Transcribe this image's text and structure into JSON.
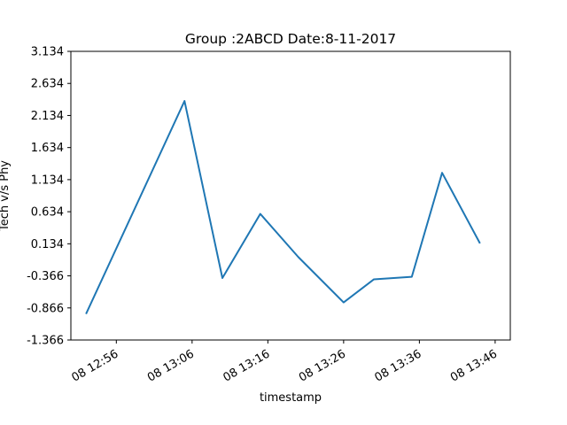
{
  "chart_data": {
    "type": "line",
    "title": "Group :2ABCD Date:8-11-2017",
    "xlabel": "timestamp",
    "ylabel": "Tech v/s Phy",
    "ylim": [
      -1.366,
      3.134
    ],
    "yticks": [
      "-1.366",
      "-0.866",
      "-0.366",
      "0.134",
      "0.634",
      "1.134",
      "1.634",
      "2.134",
      "2.634",
      "3.134"
    ],
    "xticks": [
      "08 12:56",
      "08 13:06",
      "08 13:16",
      "08 13:26",
      "08 13:36",
      "08 13:46"
    ],
    "xlim": [
      "08 12:50",
      "08 13:48"
    ],
    "grid": false,
    "series": [
      {
        "color": "#1f77b4",
        "x": [
          "08 12:52",
          "08 13:05",
          "08 13:10",
          "08 13:15",
          "08 13:20",
          "08 13:26",
          "08 13:30",
          "08 13:35",
          "08 13:39",
          "08 13:44"
        ],
        "y": [
          -0.96,
          2.36,
          -0.4,
          0.6,
          -0.07,
          -0.78,
          -0.42,
          -0.38,
          1.24,
          0.14
        ]
      }
    ]
  }
}
